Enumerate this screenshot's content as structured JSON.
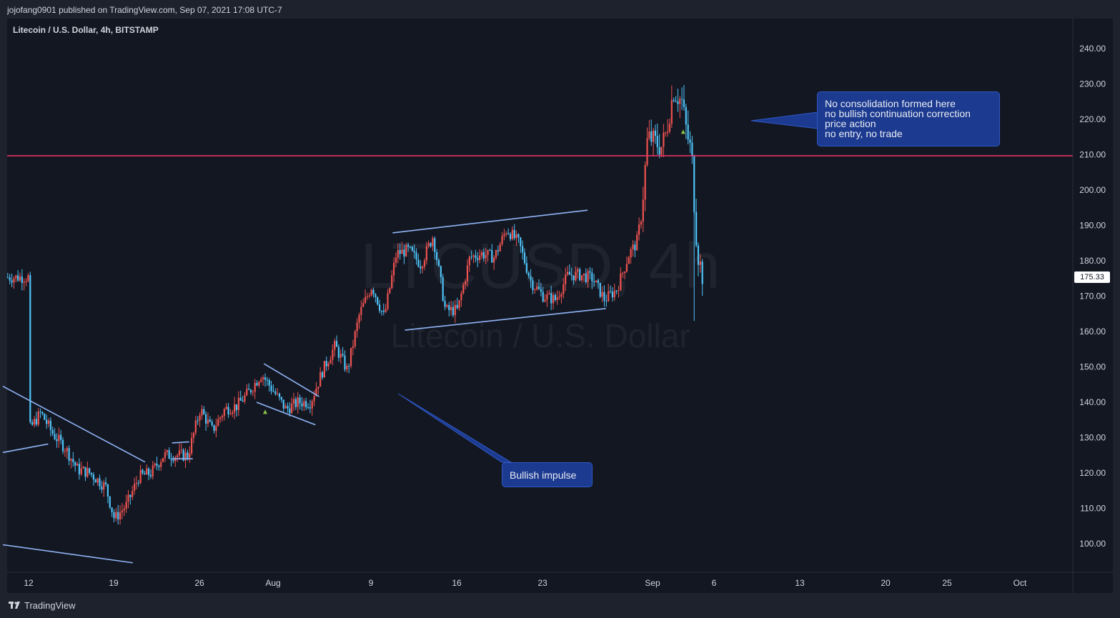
{
  "header": {
    "publish_info": "jojofang0901 published on TradingView.com, Sep 07, 2021 17:08 UTC-7"
  },
  "footer": {
    "brand": "TradingView"
  },
  "chart_data": {
    "type": "candlestick",
    "symbol_label": "Litecoin / U.S. Dollar, 4h, BITSTAMP",
    "watermark": {
      "ticker": "LTCUSD, 4h",
      "name": "Litecoin / U.S. Dollar"
    },
    "y_axis": {
      "ticks": [
        "240.00",
        "230.00",
        "220.00",
        "210.00",
        "200.00",
        "190.00",
        "180.00",
        "170.00",
        "160.00",
        "150.00",
        "140.00",
        "130.00",
        "120.00",
        "110.00",
        "100.00"
      ],
      "range": [
        91.5,
        245.6
      ],
      "position": "right"
    },
    "x_axis": {
      "labels": [
        "12",
        "19",
        "26",
        "Aug",
        "9",
        "16",
        "23",
        "Sep",
        "6",
        "13",
        "20",
        "25",
        "Oct"
      ]
    },
    "last_price": "175.33",
    "horizontal_line": {
      "price": 209.7,
      "color": "#f23669"
    },
    "colors": {
      "up": "#ef5350",
      "down": "#4fc3f7",
      "trendline": "#90b4f5",
      "note": "#1c3a8f"
    },
    "annotations": [
      {
        "lines": [
          "No consolidation formed here",
          "no bullish continuation correction",
          "price action",
          "no entry, no trade"
        ]
      },
      {
        "lines": [
          "Bullish impulse"
        ]
      }
    ],
    "anchors": [
      {
        "day": 0,
        "price": 132
      },
      {
        "day": 1,
        "price": 137
      },
      {
        "day": 2,
        "price": 131
      },
      {
        "day": 3,
        "price": 127
      },
      {
        "day": 4,
        "price": 121
      },
      {
        "day": 5,
        "price": 120
      },
      {
        "day": 6.3,
        "price": 116
      },
      {
        "day": 7,
        "price": 107
      },
      {
        "day": 8,
        "price": 111
      },
      {
        "day": 9,
        "price": 119
      },
      {
        "day": 10,
        "price": 120
      },
      {
        "day": 11,
        "price": 125
      },
      {
        "day": 12,
        "price": 125
      },
      {
        "day": 13,
        "price": 125
      },
      {
        "day": 14,
        "price": 138
      },
      {
        "day": 15,
        "price": 132
      },
      {
        "day": 16,
        "price": 138
      },
      {
        "day": 17,
        "price": 139
      },
      {
        "day": 18,
        "price": 143
      },
      {
        "day": 19,
        "price": 148
      },
      {
        "day": 20,
        "price": 143
      },
      {
        "day": 21,
        "price": 138
      },
      {
        "day": 22,
        "price": 140
      },
      {
        "day": 23,
        "price": 140
      },
      {
        "day": 24,
        "price": 149
      },
      {
        "day": 25,
        "price": 156
      },
      {
        "day": 26,
        "price": 149
      },
      {
        "day": 27,
        "price": 165
      },
      {
        "day": 28,
        "price": 173
      },
      {
        "day": 29,
        "price": 164
      },
      {
        "day": 30,
        "price": 182
      },
      {
        "day": 31,
        "price": 183
      },
      {
        "day": 32,
        "price": 179
      },
      {
        "day": 33,
        "price": 187
      },
      {
        "day": 34,
        "price": 166
      },
      {
        "day": 35,
        "price": 166
      },
      {
        "day": 36,
        "price": 181
      },
      {
        "day": 37,
        "price": 182
      },
      {
        "day": 38,
        "price": 181
      },
      {
        "day": 39,
        "price": 189
      },
      {
        "day": 40,
        "price": 185
      },
      {
        "day": 41,
        "price": 174
      },
      {
        "day": 42,
        "price": 170
      },
      {
        "day": 43,
        "price": 169
      },
      {
        "day": 44,
        "price": 176
      },
      {
        "day": 45,
        "price": 176
      },
      {
        "day": 46,
        "price": 175
      },
      {
        "day": 47,
        "price": 169
      },
      {
        "day": 48,
        "price": 172
      },
      {
        "day": 49,
        "price": 182
      },
      {
        "day": 49.6,
        "price": 185
      },
      {
        "day": 50,
        "price": 193
      },
      {
        "day": 50.5,
        "price": 215
      },
      {
        "day": 51,
        "price": 214
      },
      {
        "day": 51.6,
        "price": 212
      },
      {
        "day": 52,
        "price": 216
      },
      {
        "day": 52.6,
        "price": 228
      },
      {
        "day": 53.3,
        "price": 225
      },
      {
        "day": 53.7,
        "price": 216
      },
      {
        "day": 54.1,
        "price": 210
      },
      {
        "day": 54.4,
        "price": 190
      },
      {
        "day": 54.6,
        "price": 182
      },
      {
        "day": 55,
        "price": 175.33
      }
    ],
    "trendlines": [
      {
        "from": {
          "day": -2.1,
          "price": 144.5
        },
        "to": {
          "day": 9.5,
          "price": 123.1
        }
      },
      {
        "from": {
          "day": -2.1,
          "price": 125.8
        },
        "to": {
          "day": 1.6,
          "price": 128.2
        }
      },
      {
        "from": {
          "day": -2.1,
          "price": 99.7
        },
        "to": {
          "day": 8.5,
          "price": 94.6
        }
      },
      {
        "from": {
          "day": 19.2,
          "price": 150.9
        },
        "to": {
          "day": 23.7,
          "price": 141.6
        }
      },
      {
        "from": {
          "day": 18.6,
          "price": 140.0
        },
        "to": {
          "day": 23.4,
          "price": 133.6
        }
      },
      {
        "from": {
          "day": 29.7,
          "price": 187.9
        },
        "to": {
          "day": 45.6,
          "price": 194.3
        }
      },
      {
        "from": {
          "day": 30.7,
          "price": 160.4
        },
        "to": {
          "day": 47.1,
          "price": 166.5
        }
      },
      {
        "from": {
          "day": 11.7,
          "price": 128.5
        },
        "to": {
          "day": 13.1,
          "price": 128.8
        }
      },
      {
        "from": {
          "day": 11.7,
          "price": 124.0
        },
        "to": {
          "day": 13.4,
          "price": 124.0
        }
      }
    ],
    "signal_markers": [
      {
        "day": 19.3,
        "price": 137.3
      },
      {
        "day": 53.4,
        "price": 216.5
      }
    ]
  }
}
